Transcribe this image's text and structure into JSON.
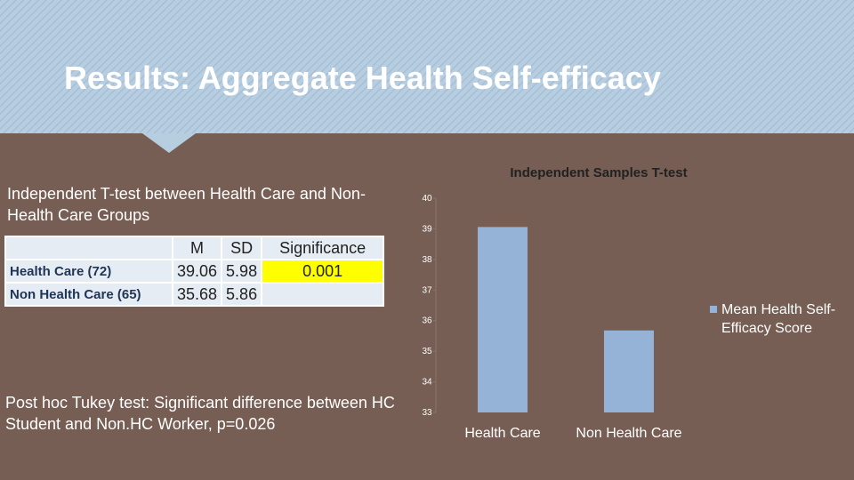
{
  "header": {
    "title": "Results: Aggregate Health Self-efficacy"
  },
  "description": "Independent T-test between Health Care and Non-Health Care Groups",
  "table": {
    "columns": [
      "M",
      "SD",
      "Significance"
    ],
    "rows": [
      [
        "Health Care (72)",
        "39.06",
        "5.98",
        "0.001"
      ],
      [
        "Non Health Care (65)",
        "35.68",
        "5.86"
      ]
    ]
  },
  "note": "Post hoc Tukey test: Significant difference between HC Student and Non.HC Worker, p=0.026",
  "chart_data": {
    "type": "bar",
    "title": "Independent Samples T-test",
    "categories": [
      "Health Care",
      "Non Health Care"
    ],
    "series": [
      {
        "name": "Mean Health Self-Efficacy Score",
        "color": "#95b3d7",
        "values": [
          39.06,
          35.68
        ]
      }
    ],
    "ylim": [
      33,
      40
    ],
    "yticks": [
      33,
      34,
      35,
      36,
      37,
      38,
      39,
      40
    ],
    "legend": "right"
  }
}
